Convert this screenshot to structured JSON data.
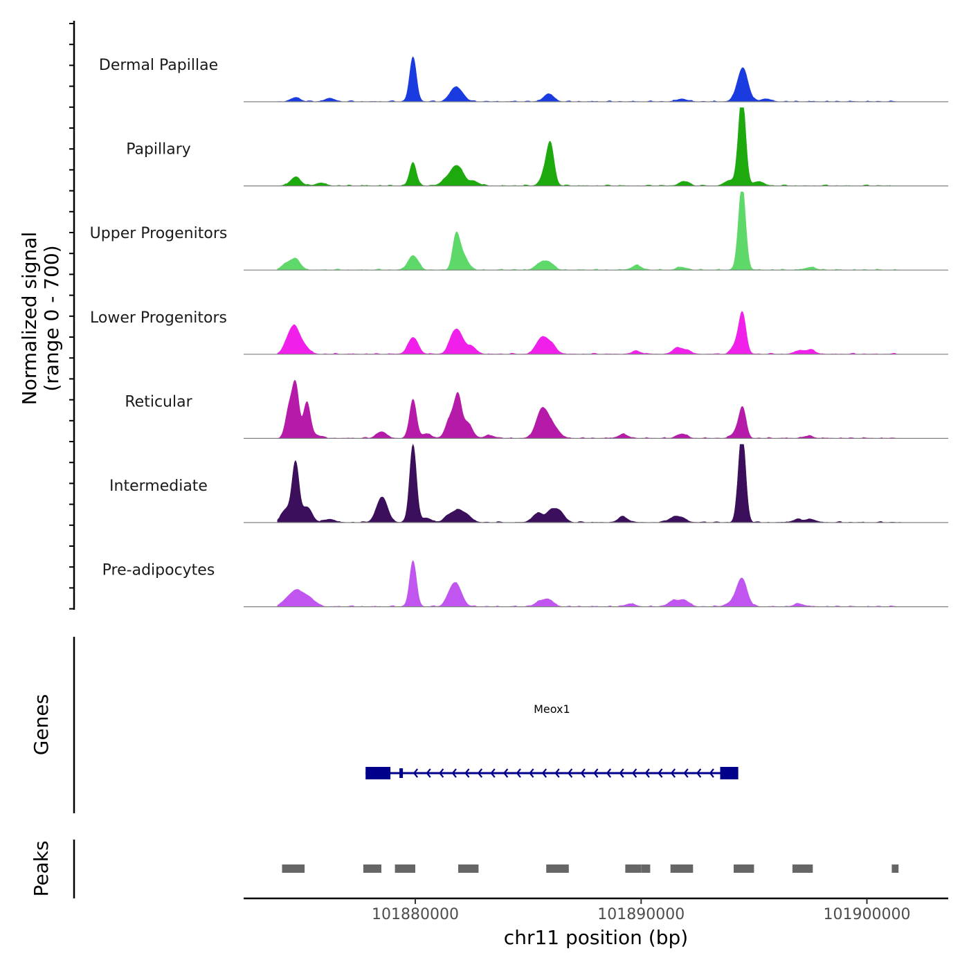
{
  "chart_data": {
    "type": "area",
    "title": "",
    "chromosome": "chr11",
    "xlabel": "chr11 position (bp)",
    "ylabel_line1": "Normalized signal",
    "ylabel_line2": "(range 0 - 700)",
    "signal_range": [
      0,
      700
    ],
    "xlim": [
      101872400,
      101903600
    ],
    "x_ticks": [
      101880000,
      101890000,
      101900000
    ],
    "x_tick_labels": [
      "101880000",
      "101890000",
      "101900000"
    ],
    "tracks": [
      {
        "name": "Dermal Papillae",
        "color": "#1a3be0",
        "peaks": [
          [
            101874700,
            35
          ],
          [
            101876200,
            30
          ],
          [
            101879900,
            400
          ],
          [
            101881700,
            95
          ],
          [
            101882000,
            70
          ],
          [
            101885900,
            70
          ],
          [
            101891800,
            25
          ],
          [
            101894400,
            120
          ],
          [
            101894550,
            200
          ],
          [
            101895500,
            25
          ]
        ]
      },
      {
        "name": "Papillary",
        "color": "#1eaa0f",
        "peaks": [
          [
            101874700,
            80
          ],
          [
            101875800,
            25
          ],
          [
            101879900,
            210
          ],
          [
            101881300,
            40
          ],
          [
            101881700,
            120
          ],
          [
            101882000,
            110
          ],
          [
            101882600,
            40
          ],
          [
            101886000,
            250
          ],
          [
            101885850,
            180
          ],
          [
            101891900,
            40
          ],
          [
            101894500,
            560
          ],
          [
            101894400,
            300
          ],
          [
            101893900,
            45
          ],
          [
            101895200,
            40
          ]
        ]
      },
      {
        "name": "Upper Progenitors",
        "color": "#5fd86a",
        "peaks": [
          [
            101874300,
            50
          ],
          [
            101874700,
            90
          ],
          [
            101879900,
            130
          ],
          [
            101881800,
            280
          ],
          [
            101882100,
            140
          ],
          [
            101885500,
            50
          ],
          [
            101885900,
            70
          ],
          [
            101889800,
            40
          ],
          [
            101891800,
            25
          ],
          [
            101894500,
            540
          ],
          [
            101894400,
            260
          ],
          [
            101897500,
            25
          ]
        ]
      },
      {
        "name": "Lower Progenitors",
        "color": "#f020ea",
        "peaks": [
          [
            101874400,
            120
          ],
          [
            101874700,
            190
          ],
          [
            101875100,
            60
          ],
          [
            101879900,
            150
          ],
          [
            101881700,
            160
          ],
          [
            101882000,
            120
          ],
          [
            101882500,
            60
          ],
          [
            101885500,
            100
          ],
          [
            101885800,
            90
          ],
          [
            101886100,
            50
          ],
          [
            101889800,
            25
          ],
          [
            101891600,
            50
          ],
          [
            101892000,
            30
          ],
          [
            101894500,
            300
          ],
          [
            101894300,
            120
          ],
          [
            101897000,
            30
          ],
          [
            101897500,
            35
          ]
        ]
      },
      {
        "name": "Reticular",
        "color": "#b51ba8",
        "peaks": [
          [
            101874400,
            250
          ],
          [
            101874700,
            480
          ],
          [
            101875200,
            320
          ],
          [
            101875600,
            30
          ],
          [
            101878500,
            60
          ],
          [
            101879900,
            350
          ],
          [
            101880500,
            40
          ],
          [
            101881600,
            200
          ],
          [
            101881900,
            300
          ],
          [
            101882300,
            140
          ],
          [
            101883300,
            25
          ],
          [
            101885500,
            170
          ],
          [
            101885800,
            170
          ],
          [
            101886200,
            80
          ],
          [
            101889200,
            35
          ],
          [
            101891800,
            40
          ],
          [
            101894500,
            230
          ],
          [
            101894300,
            80
          ],
          [
            101897400,
            20
          ]
        ]
      },
      {
        "name": "Intermediate",
        "color": "#3b0f5c",
        "peaks": [
          [
            101874300,
            120
          ],
          [
            101874700,
            520
          ],
          [
            101875200,
            140
          ],
          [
            101876200,
            30
          ],
          [
            101878400,
            90
          ],
          [
            101878600,
            160
          ],
          [
            101879900,
            700
          ],
          [
            101880500,
            40
          ],
          [
            101881500,
            60
          ],
          [
            101881900,
            90
          ],
          [
            101882300,
            60
          ],
          [
            101885400,
            80
          ],
          [
            101886000,
            100
          ],
          [
            101886400,
            90
          ],
          [
            101889200,
            50
          ],
          [
            101891400,
            40
          ],
          [
            101891800,
            40
          ],
          [
            101894400,
            300
          ],
          [
            101894500,
            560
          ],
          [
            101896900,
            25
          ],
          [
            101897500,
            30
          ]
        ]
      },
      {
        "name": "Pre-adipocytes",
        "color": "#c055f0",
        "peaks": [
          [
            101874300,
            60
          ],
          [
            101874700,
            120
          ],
          [
            101875100,
            90
          ],
          [
            101875500,
            40
          ],
          [
            101879900,
            410
          ],
          [
            101881600,
            130
          ],
          [
            101881900,
            140
          ],
          [
            101885500,
            40
          ],
          [
            101885900,
            60
          ],
          [
            101889500,
            25
          ],
          [
            101891400,
            50
          ],
          [
            101891900,
            60
          ],
          [
            101893900,
            25
          ],
          [
            101894500,
            180
          ],
          [
            101894350,
            90
          ],
          [
            101897000,
            25
          ]
        ]
      }
    ],
    "gene": {
      "name": "Meox1",
      "strand": "-",
      "color": "#00008b",
      "start": 101877800,
      "end": 101894300,
      "exons": [
        [
          101877800,
          101878900
        ],
        [
          101879300,
          101879420
        ],
        [
          101893500,
          101894300
        ]
      ]
    },
    "peaks_label": "Peaks",
    "genes_label": "Genes",
    "peak_color": "#666666",
    "peak_regions": [
      [
        101874100,
        101875100
      ],
      [
        101877700,
        101878500
      ],
      [
        101879100,
        101880000
      ],
      [
        101881900,
        101882800
      ],
      [
        101885800,
        101886800
      ],
      [
        101889300,
        101890000
      ],
      [
        101890000,
        101890400
      ],
      [
        101891300,
        101892300
      ],
      [
        101894100,
        101895000
      ],
      [
        101896700,
        101897600
      ],
      [
        101901100,
        101901400
      ]
    ]
  }
}
